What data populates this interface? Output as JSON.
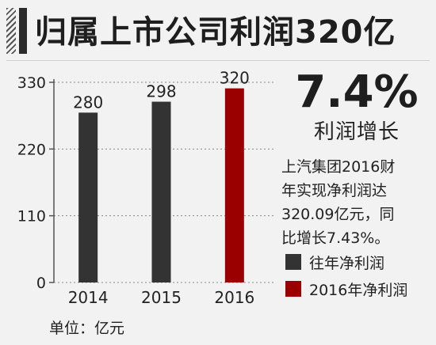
{
  "header": {
    "title": "归属上市公司利润320亿"
  },
  "highlight": {
    "value": "7.4%",
    "label": "利润增长"
  },
  "note": "上汽集团2016财\n年实现净利润达\n320.09亿元，同\n比增长7.43%。",
  "legend": [
    {
      "label": "往年净利润",
      "color": "#333333"
    },
    {
      "label": "2016年净利润",
      "color": "#9a0000"
    }
  ],
  "unit_label": "单位：亿元",
  "colors": {
    "past": "#333333",
    "current": "#9a0000",
    "background": "#f2f2f2"
  },
  "chart_data": {
    "type": "bar",
    "categories": [
      "2014",
      "2015",
      "2016"
    ],
    "values": [
      280,
      298,
      320
    ],
    "data_labels": [
      "280",
      "298",
      "320"
    ],
    "bar_colors": [
      "#333333",
      "#333333",
      "#9a0000"
    ],
    "yticks": [
      0,
      110,
      220,
      330
    ],
    "ylim": [
      0,
      330
    ],
    "grid": true,
    "legend_position": "right"
  }
}
